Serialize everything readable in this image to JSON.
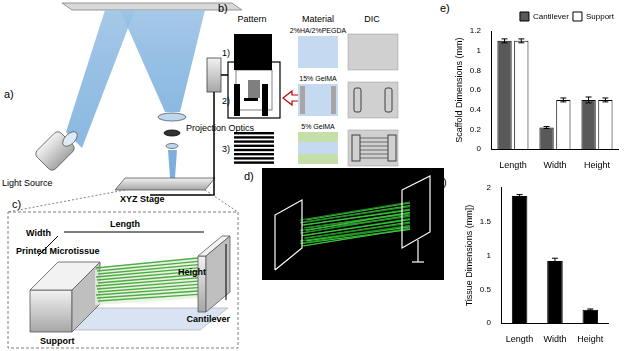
{
  "panels": {
    "a": {
      "label": "a)",
      "light_source": "Light Source",
      "projection_optics": "Projection Optics",
      "stage": "XYZ Stage"
    },
    "b": {
      "label": "b)",
      "headers": [
        "Pattern",
        "Material",
        "DIC"
      ],
      "rows": [
        {
          "label": "1)",
          "material": "2%HA/2%PEGDA"
        },
        {
          "label": "2)",
          "material": "15% GelMA"
        },
        {
          "label": "3)",
          "material": "5% GelMA"
        }
      ]
    },
    "c": {
      "label": "c)",
      "width": "Width",
      "length": "Length",
      "microtissue": "Printed Microtissue",
      "height": "Height",
      "cantilever": "Cantilever",
      "support": "Support"
    },
    "d": {
      "label": "d)"
    },
    "e": {
      "label": "e)"
    },
    "f": {
      "label": "f)"
    }
  },
  "chart_data": [
    {
      "type": "bar",
      "y_label": "Scaffold Dimensions (mm)",
      "categories": [
        "Length",
        "Width",
        "Height"
      ],
      "series": [
        {
          "name": "Cantilever",
          "color": "#595959",
          "values": [
            1.1,
            0.22,
            0.5
          ],
          "errors": [
            0.02,
            0.01,
            0.03
          ]
        },
        {
          "name": "Support",
          "color": "#ffffff",
          "values": [
            1.1,
            0.5,
            0.5
          ],
          "errors": [
            0.02,
            0.02,
            0.02
          ]
        }
      ],
      "ylim": [
        0,
        1.2
      ],
      "yticks": [
        0,
        0.2,
        0.4,
        0.6,
        0.8,
        1,
        1.2
      ],
      "legend": "upper right",
      "grid": false
    },
    {
      "type": "bar",
      "y_label": "Tissue Dimensions (mm])",
      "categories": [
        "Length",
        "Width",
        "Height"
      ],
      "values": [
        1.88,
        0.92,
        0.2
      ],
      "errors": [
        0.02,
        0.04,
        0.01
      ],
      "color": "#000000",
      "ylim": [
        0,
        2
      ],
      "yticks": [
        0,
        0.5,
        1,
        1.5,
        2
      ],
      "grid": false
    }
  ]
}
